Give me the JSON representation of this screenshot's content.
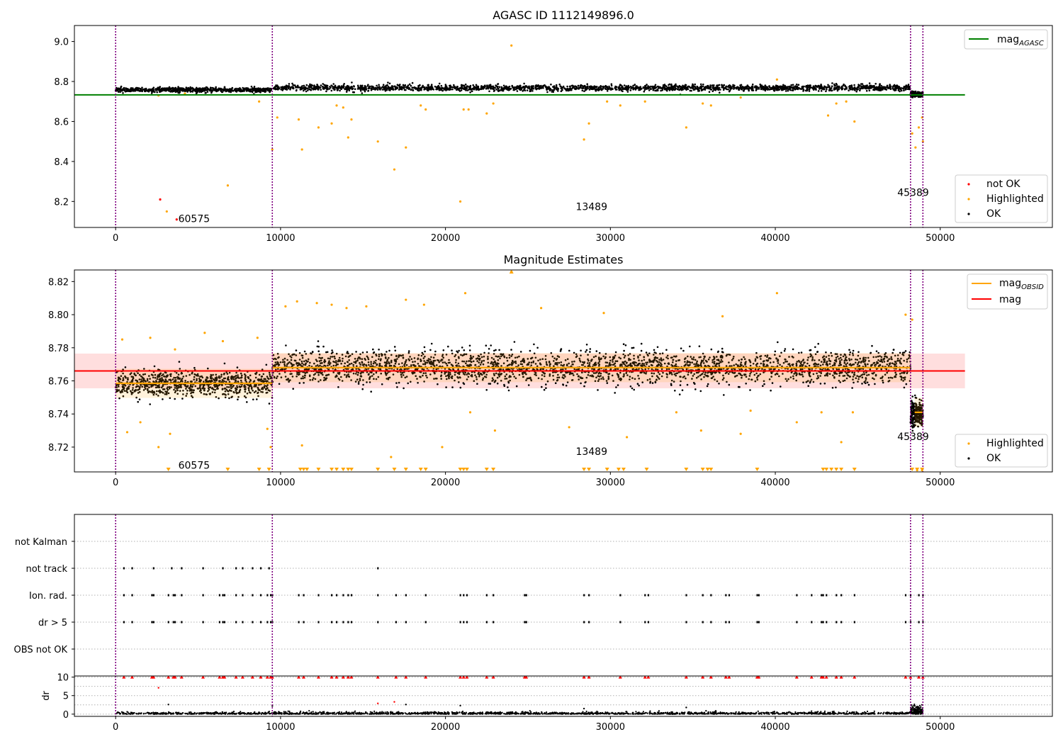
{
  "chart_data": [
    {
      "type": "scatter",
      "title": "AGASC ID 1112149896.0",
      "xlabel": "",
      "ylabel": "",
      "xlim": [
        -2500,
        56800
      ],
      "ylim": [
        8.07,
        9.08
      ],
      "xticks": [
        0,
        10000,
        20000,
        30000,
        40000,
        50000
      ],
      "yticks": [
        8.2,
        8.4,
        8.6,
        8.8,
        9.0
      ],
      "ytick_labels": [
        "8.2",
        "8.4",
        "8.6",
        "8.8",
        "9.0"
      ],
      "grid": false,
      "vlines": [
        0,
        9500,
        48200,
        48950
      ],
      "hline": {
        "name": "mag_AGASC",
        "label_main": "mag",
        "label_sub": "AGASC",
        "y": 8.733,
        "x": [
          -2500,
          51500
        ],
        "color": "#008000"
      },
      "ok_bands": [
        {
          "x": [
            0,
            9500
          ],
          "center": 8.758,
          "spread": 0.012
        },
        {
          "x": [
            9500,
            48200
          ],
          "center": 8.768,
          "spread": 0.015
        },
        {
          "x": [
            48200,
            48950
          ],
          "center": 8.735,
          "spread": 0.012
        }
      ],
      "highlighted_points": [
        [
          2600,
          8.73
        ],
        [
          3100,
          8.15
        ],
        [
          4200,
          8.74
        ],
        [
          6800,
          8.28
        ],
        [
          8700,
          8.7
        ],
        [
          9500,
          8.46
        ],
        [
          9800,
          8.62
        ],
        [
          11100,
          8.61
        ],
        [
          11300,
          8.46
        ],
        [
          12300,
          8.57
        ],
        [
          13100,
          8.59
        ],
        [
          13400,
          8.68
        ],
        [
          13800,
          8.67
        ],
        [
          14100,
          8.52
        ],
        [
          14300,
          8.61
        ],
        [
          15900,
          8.5
        ],
        [
          16900,
          8.36
        ],
        [
          17600,
          8.47
        ],
        [
          18500,
          8.68
        ],
        [
          18800,
          8.66
        ],
        [
          20900,
          8.2
        ],
        [
          21100,
          8.66
        ],
        [
          21400,
          8.66
        ],
        [
          22500,
          8.64
        ],
        [
          22900,
          8.69
        ],
        [
          24000,
          8.98
        ],
        [
          28400,
          8.51
        ],
        [
          28700,
          8.59
        ],
        [
          29800,
          8.7
        ],
        [
          30600,
          8.68
        ],
        [
          32100,
          8.7
        ],
        [
          34600,
          8.57
        ],
        [
          35600,
          8.69
        ],
        [
          36100,
          8.68
        ],
        [
          37900,
          8.72
        ],
        [
          40100,
          8.81
        ],
        [
          43200,
          8.63
        ],
        [
          43700,
          8.69
        ],
        [
          44300,
          8.7
        ],
        [
          44800,
          8.6
        ],
        [
          48300,
          8.54
        ],
        [
          48500,
          8.47
        ],
        [
          48700,
          8.57
        ],
        [
          48900,
          8.62
        ],
        [
          48950,
          8.5
        ]
      ],
      "not_ok_points": [
        [
          2700,
          8.21
        ],
        [
          3700,
          8.11
        ]
      ],
      "annotations": [
        {
          "text": "60575",
          "x": 3800,
          "y": 8.115
        },
        {
          "text": "13489",
          "x": 27900,
          "y": 8.175
        },
        {
          "text": "45389",
          "x": 47400,
          "y": 8.245
        }
      ],
      "legend": {
        "placement": "upper-right",
        "entries": [
          {
            "label_main": "mag",
            "label_sub": "AGASC",
            "color": "#008000"
          }
        ]
      },
      "legend2": {
        "placement": "lower-right",
        "entries": [
          {
            "label": "not OK",
            "color": "#ff0000"
          },
          {
            "label": "Highlighted",
            "color": "#ffa500"
          },
          {
            "label": "OK",
            "color": "#000000"
          }
        ]
      }
    },
    {
      "type": "scatter",
      "title": "Magnitude Estimates",
      "xlabel": "",
      "ylabel": "",
      "xlim": [
        -2500,
        56800
      ],
      "ylim": [
        8.705,
        8.827
      ],
      "xticks": [
        0,
        10000,
        20000,
        30000,
        40000,
        50000
      ],
      "yticks": [
        8.72,
        8.74,
        8.76,
        8.78,
        8.8,
        8.82
      ],
      "ytick_labels": [
        "8.72",
        "8.74",
        "8.76",
        "8.78",
        "8.80",
        "8.82"
      ],
      "grid": false,
      "vlines": [
        0,
        9500,
        48200,
        48950
      ],
      "mag_line": {
        "name": "mag",
        "y": 8.766,
        "x": [
          -2500,
          51500
        ],
        "band": [
          8.7555,
          8.7765
        ],
        "color": "#ff0000"
      },
      "mag_obsid_segments": [
        {
          "x": [
            0,
            9500
          ],
          "y": 8.7585
        },
        {
          "x": [
            9500,
            48200
          ],
          "y": 8.768
        },
        {
          "x": [
            48450,
            48950
          ],
          "y": 8.741
        }
      ],
      "ok_bands": [
        {
          "x": [
            0,
            9500
          ],
          "center": 8.7585,
          "spread": 0.008
        },
        {
          "x": [
            9500,
            48200
          ],
          "center": 8.768,
          "spread": 0.01
        },
        {
          "x": [
            48200,
            48950
          ],
          "center": 8.74,
          "spread": 0.008
        }
      ],
      "highlighted_points": [
        [
          400,
          8.785
        ],
        [
          700,
          8.729
        ],
        [
          1500,
          8.735
        ],
        [
          2100,
          8.786
        ],
        [
          2600,
          8.72
        ],
        [
          3300,
          8.728
        ],
        [
          3600,
          8.779
        ],
        [
          5400,
          8.789
        ],
        [
          6500,
          8.784
        ],
        [
          8600,
          8.786
        ],
        [
          9200,
          8.731
        ],
        [
          9400,
          8.72
        ],
        [
          10300,
          8.805
        ],
        [
          11000,
          8.808
        ],
        [
          11300,
          8.721
        ],
        [
          12200,
          8.807
        ],
        [
          13100,
          8.806
        ],
        [
          14000,
          8.804
        ],
        [
          15200,
          8.805
        ],
        [
          16700,
          8.714
        ],
        [
          17600,
          8.809
        ],
        [
          18700,
          8.806
        ],
        [
          19800,
          8.72
        ],
        [
          21200,
          8.813
        ],
        [
          21500,
          8.741
        ],
        [
          23000,
          8.73
        ],
        [
          24000,
          8.826
        ],
        [
          25800,
          8.804
        ],
        [
          27500,
          8.732
        ],
        [
          29600,
          8.801
        ],
        [
          31000,
          8.726
        ],
        [
          34000,
          8.741
        ],
        [
          35500,
          8.73
        ],
        [
          36800,
          8.799
        ],
        [
          37900,
          8.728
        ],
        [
          38500,
          8.742
        ],
        [
          40100,
          8.813
        ],
        [
          41300,
          8.735
        ],
        [
          42800,
          8.741
        ],
        [
          44000,
          8.723
        ],
        [
          44700,
          8.741
        ],
        [
          47900,
          8.8
        ],
        [
          48300,
          8.797
        ],
        [
          48600,
          8.706
        ],
        [
          48900,
          8.706
        ]
      ],
      "clipped_low_x": [
        3200,
        6800,
        8700,
        9300,
        11200,
        11400,
        11600,
        12300,
        13100,
        13400,
        13800,
        14100,
        14300,
        15900,
        16900,
        17600,
        18500,
        18800,
        20900,
        21100,
        21300,
        22500,
        22900,
        28400,
        28700,
        29800,
        30500,
        30800,
        32200,
        34600,
        35600,
        35900,
        36100,
        38900,
        42900,
        43100,
        43400,
        43700,
        44000,
        44800,
        48300,
        48600,
        48900
      ],
      "clipped_high_x": [
        24000
      ],
      "annotations": [
        {
          "text": "60575",
          "x": 3800,
          "y": 8.709
        },
        {
          "text": "13489",
          "x": 27900,
          "y": 8.7175
        },
        {
          "text": "45389",
          "x": 47400,
          "y": 8.7265
        }
      ],
      "legend": {
        "placement": "upper-right",
        "entries": [
          {
            "label_main": "mag",
            "label_sub": "OBSID",
            "color": "#ffa500"
          },
          {
            "label_main": "mag",
            "label_sub": "",
            "color": "#ff0000"
          }
        ]
      },
      "legend2": {
        "placement": "lower-right",
        "entries": [
          {
            "label": "Highlighted",
            "color": "#ffa500"
          },
          {
            "label": "OK",
            "color": "#000000"
          }
        ]
      }
    },
    {
      "type": "scatter",
      "title": "",
      "xlabel": "",
      "ylabel": "",
      "xlim": [
        -2500,
        56800
      ],
      "categories": [
        "not Kalman",
        "not track",
        "Ion. rad.",
        "dr > 5",
        "OBS not OK"
      ],
      "grid": "horizontal-dotted",
      "vlines": [
        0,
        9500,
        48200,
        48950
      ],
      "flags": {
        "not Kalman": [],
        "not track": [
          500,
          1000,
          2300,
          3400,
          4000,
          5300,
          6500,
          7300,
          7700,
          8300,
          8800,
          9300,
          15900
        ],
        "Ion. rad.": [
          500,
          1000,
          2200,
          2300,
          3200,
          3500,
          3600,
          4000,
          5300,
          6300,
          6500,
          6600,
          7300,
          7700,
          8300,
          8800,
          9200,
          9400,
          9500,
          11100,
          11400,
          12300,
          13100,
          13400,
          13800,
          14100,
          14300,
          15900,
          17000,
          17600,
          18800,
          20900,
          21100,
          21300,
          22500,
          22900,
          24800,
          24900,
          28400,
          28700,
          30600,
          32100,
          32300,
          34600,
          35600,
          36100,
          37000,
          37200,
          38900,
          39000,
          41300,
          42200,
          42800,
          42900,
          43100,
          43700,
          44000,
          44800,
          47900,
          48200,
          48700,
          48950
        ],
        "dr > 5": [
          500,
          1000,
          2200,
          2300,
          3200,
          3500,
          3600,
          4000,
          5300,
          6300,
          6500,
          6600,
          7300,
          7700,
          8300,
          8800,
          9200,
          9400,
          9500,
          11100,
          11400,
          12300,
          13100,
          13400,
          13800,
          14100,
          14300,
          15900,
          17000,
          17600,
          18800,
          20900,
          21100,
          21300,
          22500,
          22900,
          24800,
          24900,
          28400,
          28700,
          30600,
          32100,
          32300,
          34600,
          35600,
          36100,
          37000,
          37200,
          38900,
          39000,
          41300,
          42200,
          42800,
          42900,
          43100,
          43700,
          44000,
          44800,
          47900,
          48200,
          48700,
          48950
        ],
        "OBS not OK": []
      }
    },
    {
      "type": "scatter",
      "title": "",
      "xlabel": "",
      "ylabel": "dr",
      "xlim": [
        -2500,
        56800
      ],
      "ylim": [
        -0.6,
        10.3
      ],
      "xticks": [
        0,
        10000,
        20000,
        30000,
        40000,
        50000
      ],
      "yticks": [
        0,
        5,
        10
      ],
      "ytick_labels": [
        "0",
        "5",
        "10"
      ],
      "grid": "horizontal-dotted",
      "vlines": [
        0,
        9500,
        48200,
        48950
      ],
      "red_clipped_x": [
        500,
        1000,
        2200,
        2300,
        3200,
        3500,
        3600,
        4000,
        5300,
        6300,
        6500,
        6600,
        7300,
        7700,
        8300,
        8800,
        9200,
        9400,
        9500,
        11100,
        11400,
        12300,
        13100,
        13400,
        13800,
        14100,
        14300,
        15900,
        17000,
        17600,
        18800,
        20900,
        21100,
        21300,
        22500,
        22900,
        24800,
        24900,
        28400,
        28700,
        30600,
        32100,
        32300,
        34600,
        35600,
        36100,
        37000,
        37200,
        38900,
        39000,
        41300,
        42200,
        42800,
        42900,
        43100,
        43700,
        44000,
        44800,
        47900,
        48200,
        48700,
        48950
      ],
      "red_points": [
        [
          2600,
          7.1
        ],
        [
          15900,
          2.9
        ],
        [
          16900,
          3.3
        ]
      ],
      "black_points": [
        [
          3200,
          2.6
        ],
        [
          9500,
          2.2
        ],
        [
          17600,
          2.6
        ],
        [
          20900,
          2.3
        ],
        [
          28400,
          1.5
        ],
        [
          34600,
          1.8
        ],
        [
          35800,
          0.9
        ]
      ],
      "dense_segments": [
        {
          "x": [
            0,
            48200
          ],
          "max": 0.6
        },
        {
          "x": [
            48200,
            48950
          ],
          "max": 2.5
        }
      ]
    }
  ]
}
